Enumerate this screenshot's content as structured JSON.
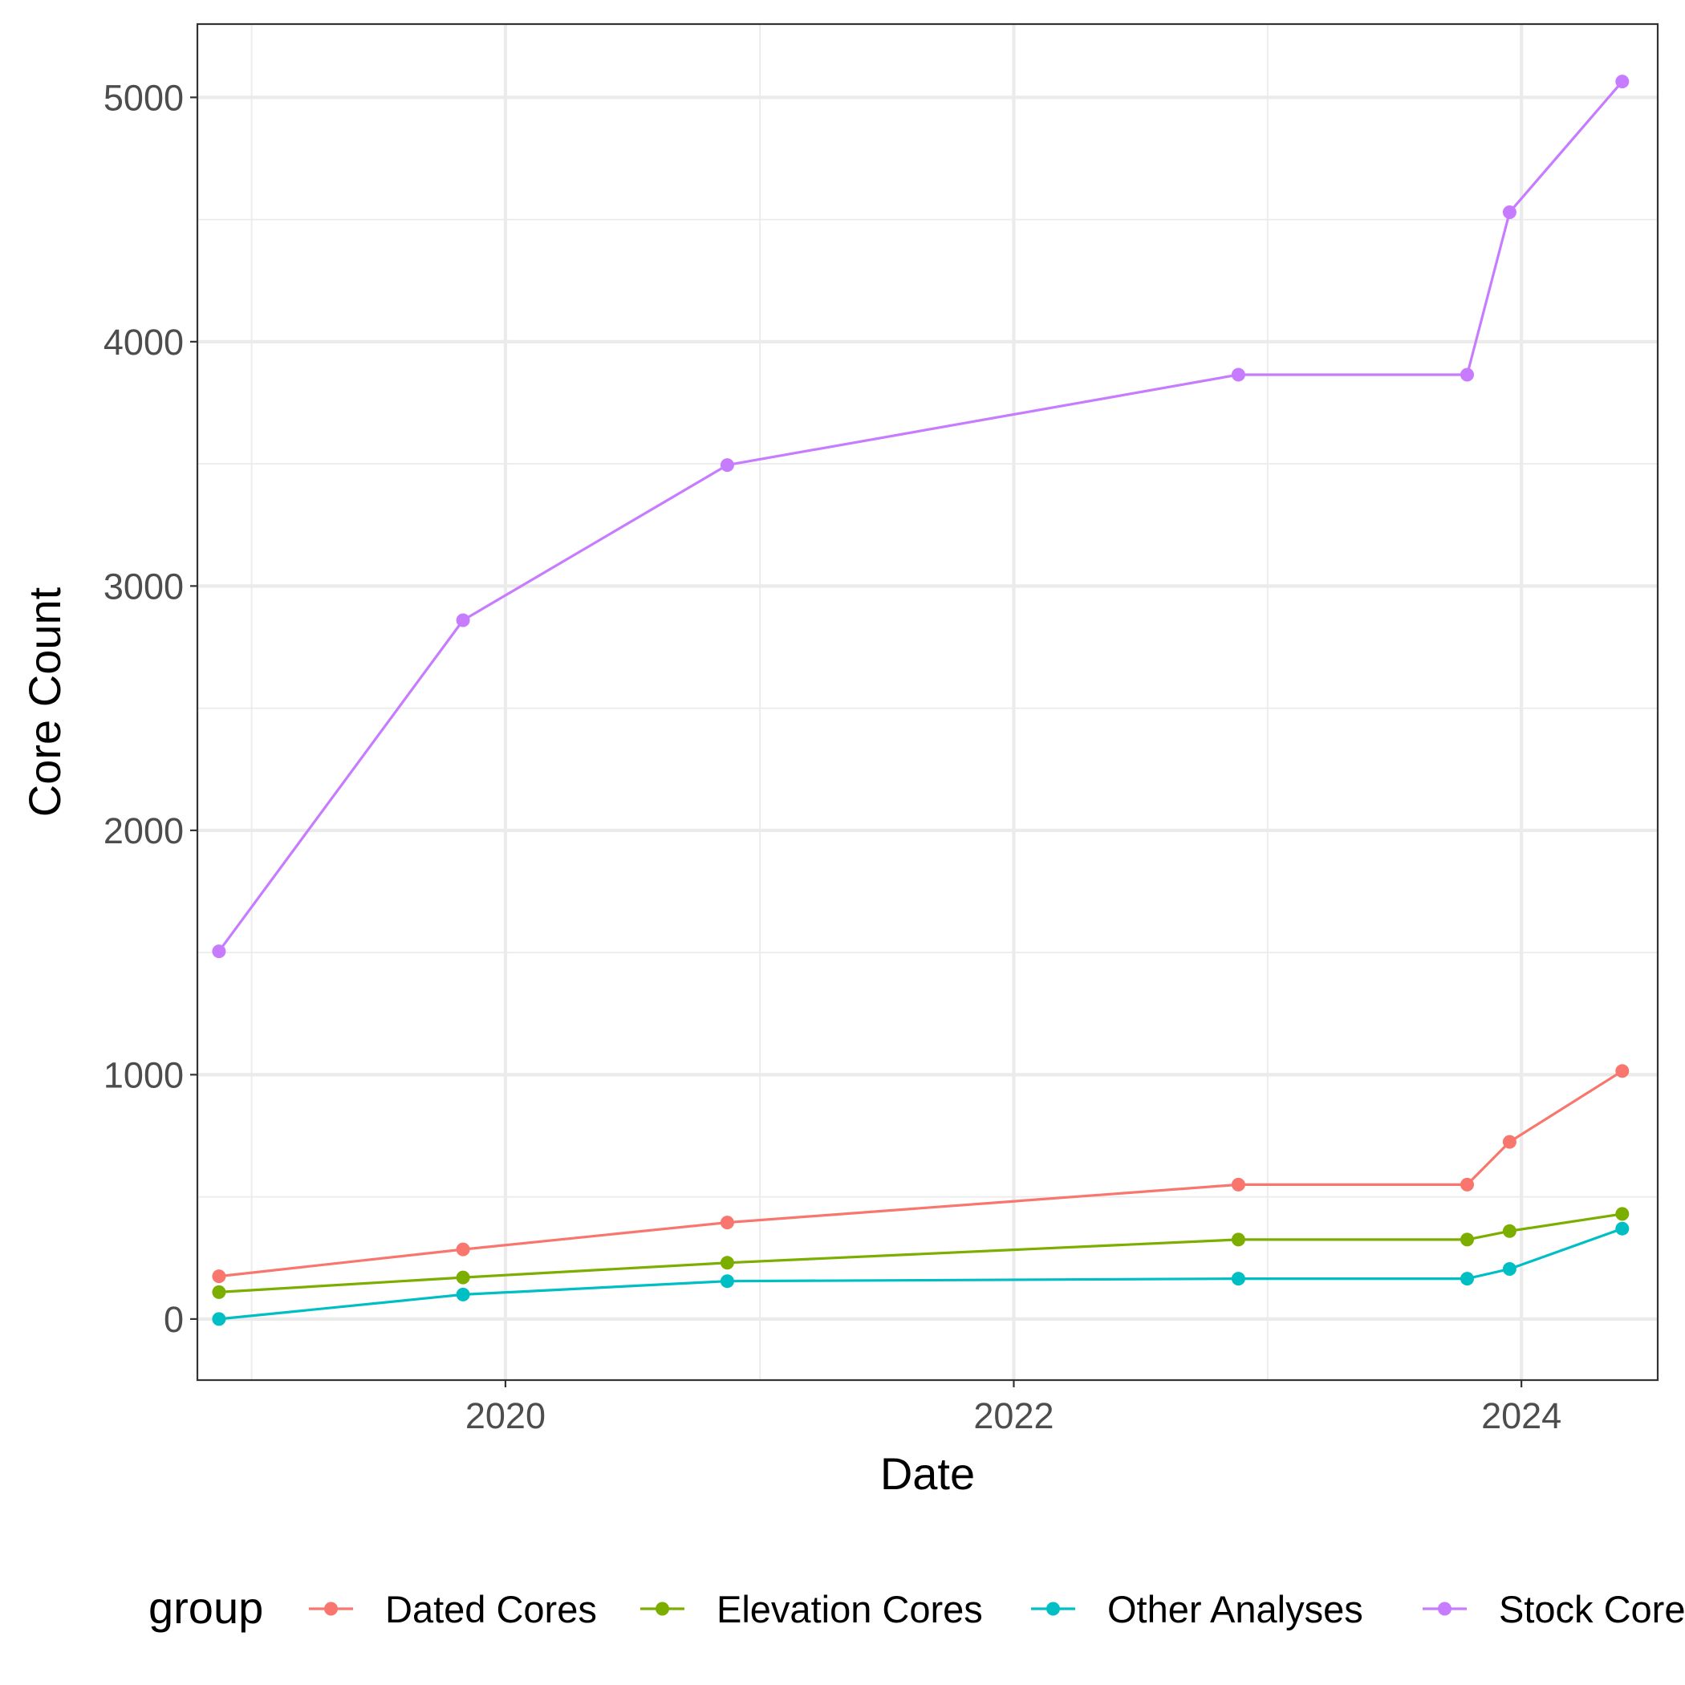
{
  "chart_data": {
    "type": "line",
    "xlabel": "Date",
    "ylabel": "Core Count",
    "x_ticks": [
      "2020",
      "2022",
      "2024"
    ],
    "y_ticks": [
      "0",
      "1000",
      "2000",
      "3000",
      "4000",
      "5000"
    ],
    "xlim": [
      "2018-10-15",
      "2024-07-15"
    ],
    "ylim": [
      -250,
      5300
    ],
    "grid": true,
    "legend": {
      "title": "group",
      "position": "bottom"
    },
    "x": [
      "2018-11-15",
      "2019-11-01",
      "2020-11-15",
      "2022-11-20",
      "2023-10-15",
      "2023-12-15",
      "2024-05-25"
    ],
    "series": [
      {
        "name": "Dated Cores",
        "color": "#F8766D",
        "values": [
          175,
          285,
          395,
          550,
          550,
          725,
          1015
        ]
      },
      {
        "name": "Elevation Cores",
        "color": "#7CAE00",
        "values": [
          110,
          170,
          230,
          325,
          325,
          360,
          430
        ]
      },
      {
        "name": "Other Analyses",
        "color": "#00BFC4",
        "values": [
          0,
          100,
          155,
          165,
          165,
          205,
          370
        ]
      },
      {
        "name": "Stock Cores",
        "color": "#C77CFF",
        "values": [
          1505,
          2860,
          3495,
          3865,
          3865,
          4530,
          5065
        ]
      }
    ]
  }
}
